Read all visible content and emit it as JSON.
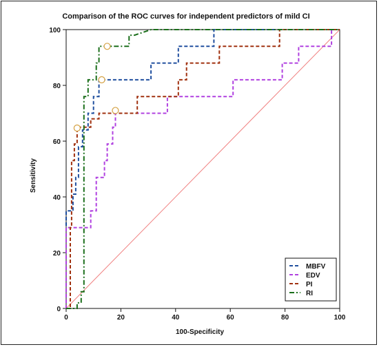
{
  "chart_data": {
    "type": "line",
    "title": "Comparison of the ROC curves for independent predictors of mild CI",
    "xlabel": "100-Specificity",
    "ylabel": "Sensitivity",
    "xlim": [
      0,
      100
    ],
    "ylim": [
      0,
      100
    ],
    "xticks": [
      0,
      20,
      40,
      60,
      80,
      100
    ],
    "yticks": [
      0,
      20,
      40,
      60,
      80,
      100
    ],
    "grid": false,
    "legend_position": "bottom-right",
    "reference_line": {
      "color": "#f08080",
      "points": [
        [
          0,
          0
        ],
        [
          100,
          100
        ]
      ]
    },
    "series": [
      {
        "name": "MBFV",
        "color": "#1f4e9e",
        "dash": "dashed",
        "points": [
          [
            0,
            0
          ],
          [
            0,
            35
          ],
          [
            2.5,
            35
          ],
          [
            2.5,
            41
          ],
          [
            3.5,
            41
          ],
          [
            3.5,
            47
          ],
          [
            4.5,
            47
          ],
          [
            4.5,
            58
          ],
          [
            6,
            58
          ],
          [
            6,
            64
          ],
          [
            8,
            64
          ],
          [
            8,
            70
          ],
          [
            10,
            70
          ],
          [
            10,
            76
          ],
          [
            12,
            76
          ],
          [
            12,
            82
          ],
          [
            18,
            82
          ],
          [
            18,
            82
          ],
          [
            31,
            82
          ],
          [
            31,
            88
          ],
          [
            41,
            88
          ],
          [
            41,
            94
          ],
          [
            54,
            94
          ],
          [
            54,
            100
          ],
          [
            100,
            100
          ]
        ],
        "marker": [
          13,
          82
        ]
      },
      {
        "name": "EDV",
        "color": "#b040e0",
        "dash": "dashed",
        "points": [
          [
            0,
            0
          ],
          [
            0,
            29
          ],
          [
            9,
            29
          ],
          [
            9,
            35
          ],
          [
            11,
            35
          ],
          [
            11,
            47
          ],
          [
            14,
            47
          ],
          [
            14,
            53
          ],
          [
            15,
            53
          ],
          [
            15,
            59
          ],
          [
            17,
            59
          ],
          [
            17,
            65
          ],
          [
            18,
            65
          ],
          [
            18,
            70
          ],
          [
            37,
            70
          ],
          [
            37,
            76
          ],
          [
            61,
            76
          ],
          [
            61,
            82
          ],
          [
            79,
            82
          ],
          [
            79,
            88
          ],
          [
            85,
            88
          ],
          [
            85,
            94
          ],
          [
            97,
            94
          ],
          [
            97,
            100
          ],
          [
            100,
            100
          ]
        ],
        "marker": [
          18,
          71
        ]
      },
      {
        "name": "PI",
        "color": "#a0300f",
        "dash": "dashed",
        "points": [
          [
            0,
            0
          ],
          [
            1.5,
            0
          ],
          [
            1.5,
            29
          ],
          [
            2,
            29
          ],
          [
            2,
            53
          ],
          [
            3,
            53
          ],
          [
            3,
            59
          ],
          [
            4,
            59
          ],
          [
            4,
            65
          ],
          [
            9,
            65
          ],
          [
            9,
            68
          ],
          [
            12,
            68
          ],
          [
            12,
            70
          ],
          [
            26,
            70
          ],
          [
            26,
            76
          ],
          [
            41,
            76
          ],
          [
            41,
            82
          ],
          [
            44,
            82
          ],
          [
            44,
            88
          ],
          [
            56,
            88
          ],
          [
            56,
            94
          ],
          [
            78,
            94
          ],
          [
            78,
            100
          ],
          [
            100,
            100
          ]
        ],
        "marker": [
          4,
          64.7
        ]
      },
      {
        "name": "RI",
        "color": "#1a6e1a",
        "dash": "dashdot",
        "points": [
          [
            0,
            0
          ],
          [
            4,
            0
          ],
          [
            4,
            2
          ],
          [
            5.5,
            2
          ],
          [
            5.5,
            6
          ],
          [
            6.5,
            6
          ],
          [
            6.5,
            76
          ],
          [
            8,
            76
          ],
          [
            8,
            82
          ],
          [
            11,
            82
          ],
          [
            11,
            88
          ],
          [
            12,
            88
          ],
          [
            12,
            94
          ],
          [
            23,
            94
          ],
          [
            23,
            98
          ],
          [
            25,
            98
          ],
          [
            31,
            100
          ],
          [
            100,
            100
          ]
        ],
        "marker": [
          15,
          94
        ]
      }
    ]
  }
}
